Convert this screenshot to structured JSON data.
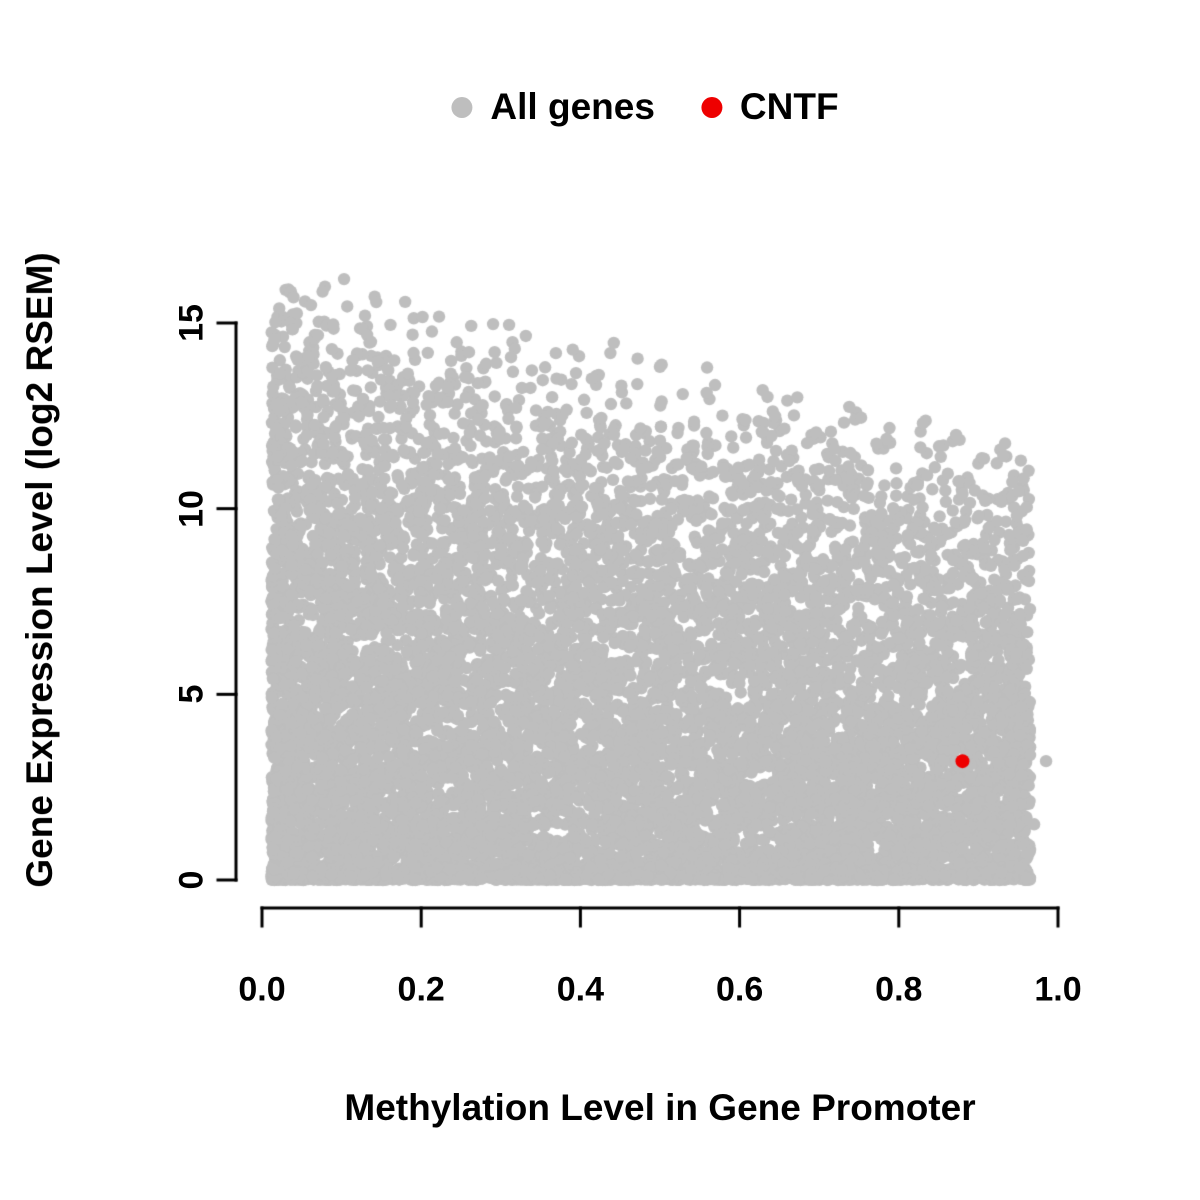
{
  "legend": {
    "items": [
      {
        "label": "All genes",
        "color": "#BEBEBE"
      },
      {
        "label": "CNTF",
        "color": "#EE0000"
      }
    ]
  },
  "chart_data": {
    "type": "scatter",
    "title": "",
    "xlabel": "Methylation Level in Gene Promoter",
    "ylabel": "Gene Expression Level (log2 RSEM)",
    "xlim": [
      0.0,
      1.0
    ],
    "ylim": [
      0,
      17
    ],
    "grid": false,
    "legend_position": "top-center",
    "x_ticks": [
      "0.0",
      "0.2",
      "0.4",
      "0.6",
      "0.8",
      "1.0"
    ],
    "x_tick_values": [
      0,
      0.2,
      0.4,
      0.6,
      0.8,
      1.0
    ],
    "y_ticks": [
      "0",
      "5",
      "10",
      "15"
    ],
    "y_tick_values": [
      0,
      5,
      10,
      15
    ],
    "series": [
      {
        "name": "All genes",
        "color": "#BEBEBE",
        "marker": "filled-circle",
        "kind": "dense-cloud",
        "note": "~12000 genes; dense gray cloud filling the region below a decreasing upper envelope (max expression ~16.7 at methylation ~0 declining to ~12 at methylation ~1), with a very dense band at expression ~0 across all methylation levels",
        "generator": {
          "seed": 42,
          "n": 12000,
          "x_min": 0.012,
          "x_max": 0.965,
          "x_uniform_mix": 0.45,
          "x_power": 1.35,
          "envelope_intercept": 16.8,
          "envelope_slope": -5.2,
          "y_tail_power": 0.55,
          "zero_band_fraction": 0.18,
          "zero_band_scale": 0.18
        },
        "extra_points": [
          [
            0.985,
            3.2
          ],
          [
            0.97,
            1.5
          ]
        ]
      },
      {
        "name": "CNTF",
        "color": "#EE0000",
        "marker": "filled-circle",
        "points": [
          [
            0.88,
            3.2
          ]
        ]
      }
    ]
  }
}
